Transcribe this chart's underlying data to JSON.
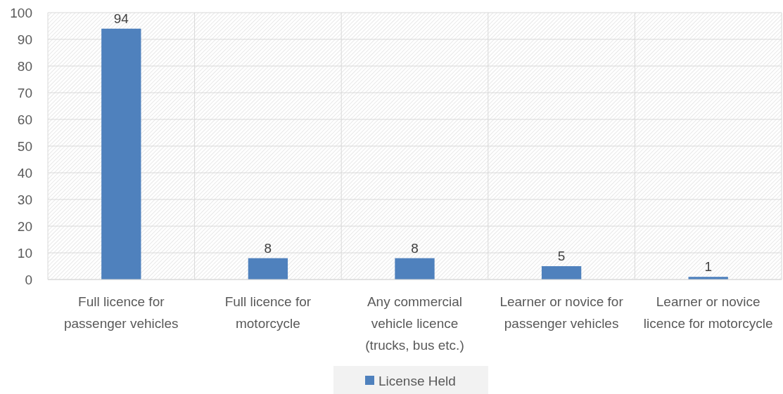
{
  "chart_data": {
    "type": "bar",
    "categories": [
      "Full licence for passenger vehicles",
      "Full licence for motorcycle",
      "Any commercial vehicle licence (trucks, bus etc.)",
      "Learner or novice for passenger vehicles",
      "Learner or novice licence for motorcycle"
    ],
    "series": [
      {
        "name": "License Held",
        "color": "#4f81bd",
        "values": [
          94,
          8,
          8,
          5,
          1
        ]
      }
    ],
    "ylim": [
      0,
      100
    ],
    "yticks": [
      0,
      10,
      20,
      30,
      40,
      50,
      60,
      70,
      80,
      90,
      100
    ],
    "grid": true,
    "legend": "bottom",
    "data_labels": true
  }
}
